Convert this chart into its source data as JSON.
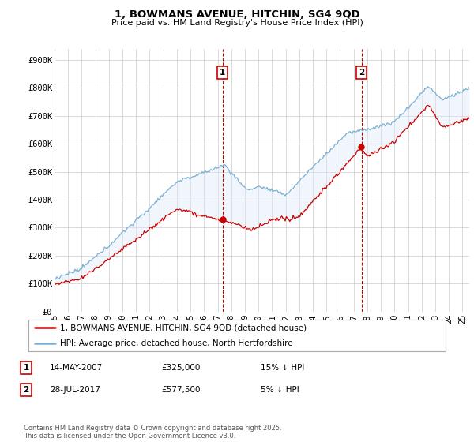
{
  "title": "1, BOWMANS AVENUE, HITCHIN, SG4 9QD",
  "subtitle": "Price paid vs. HM Land Registry's House Price Index (HPI)",
  "ylabel_ticks": [
    "£0",
    "£100K",
    "£200K",
    "£300K",
    "£400K",
    "£500K",
    "£600K",
    "£700K",
    "£800K",
    "£900K"
  ],
  "ytick_values": [
    0,
    100000,
    200000,
    300000,
    400000,
    500000,
    600000,
    700000,
    800000,
    900000
  ],
  "ylim": [
    0,
    940000
  ],
  "xlim_start": 1995.0,
  "xlim_end": 2025.5,
  "sale1": {
    "date_label": "14-MAY-2007",
    "price": 325000,
    "rel": "15% ↓ HPI",
    "x": 2007.37
  },
  "sale2": {
    "date_label": "28-JUL-2017",
    "price": 577500,
    "rel": "5% ↓ HPI",
    "x": 2017.57
  },
  "legend_line1": "1, BOWMANS AVENUE, HITCHIN, SG4 9QD (detached house)",
  "legend_line2": "HPI: Average price, detached house, North Hertfordshire",
  "footnote": "Contains HM Land Registry data © Crown copyright and database right 2025.\nThis data is licensed under the Open Government Licence v3.0.",
  "line_color_red": "#cc0000",
  "line_color_blue": "#7aafd4",
  "shade_color": "#daeaf5",
  "marker_box_color": "#cc0000",
  "grid_color": "#cccccc",
  "background_color": "#ffffff",
  "x_ticks": [
    1995,
    1996,
    1997,
    1998,
    1999,
    2000,
    2001,
    2002,
    2003,
    2004,
    2005,
    2006,
    2007,
    2008,
    2009,
    2010,
    2011,
    2012,
    2013,
    2014,
    2015,
    2016,
    2017,
    2018,
    2019,
    2020,
    2021,
    2022,
    2023,
    2024,
    2025
  ]
}
